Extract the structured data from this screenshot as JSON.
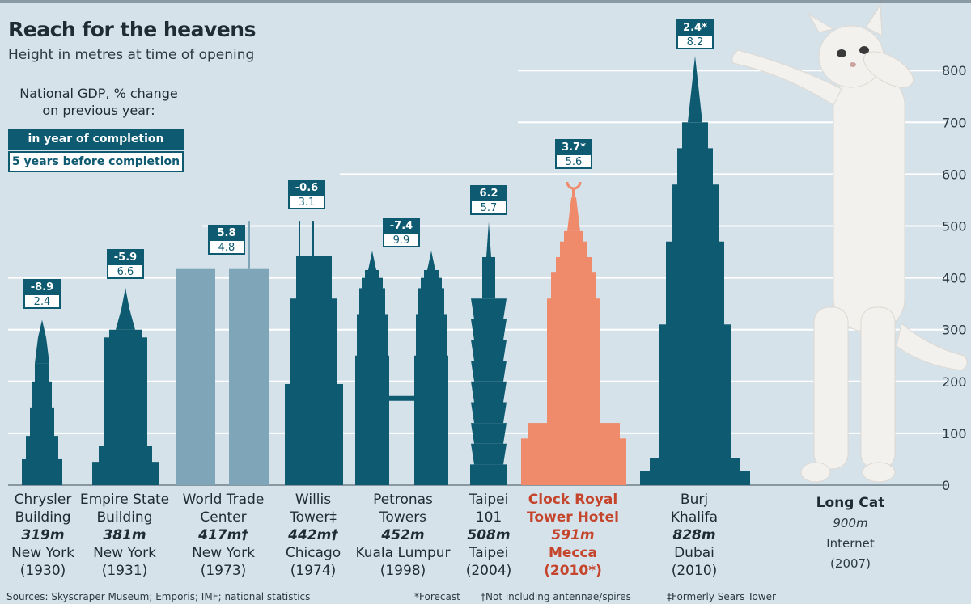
{
  "title": "Reach for the heavens",
  "subtitle": "Height in metres at time of opening",
  "gdp_heading": "National GDP, % change on previous year:",
  "legend": [
    "in year of completion",
    "5 years before completion"
  ],
  "footnotes": {
    "sources": "Sources: Skyscraper Museum; Emporis; IMF; national statistics",
    "forecast": "*Forecast",
    "antennae": "†Not including antennae/spires",
    "sears": "‡Formerly Sears Tower"
  },
  "colors": {
    "teal": "#0e5a71",
    "light_blue": "#7fa6b8",
    "orange": "#ef8a6a",
    "background": "#d6e2ea",
    "gdp_box": "#0e5a71"
  },
  "chart_data": {
    "type": "bar",
    "title": "Reach for the heavens",
    "subtitle": "Height in metres at time of opening",
    "ylim": [
      0,
      800
    ],
    "yticks": [
      0,
      100,
      200,
      300,
      400,
      500,
      600,
      700,
      800
    ],
    "grid": true,
    "axis_side": "right",
    "buildings": [
      {
        "name": "Chrysler Building",
        "name_lines": [
          "Chrysler",
          "Building"
        ],
        "height": 319,
        "height_label": "319m",
        "city": "New York",
        "year_label": "(1930)",
        "gdp_year": "-8.9",
        "gdp_before": "2.4",
        "color": "teal"
      },
      {
        "name": "Empire State Building",
        "name_lines": [
          "Empire State",
          "Building"
        ],
        "height": 381,
        "height_label": "381m",
        "city": "New York",
        "year_label": "(1931)",
        "gdp_year": "-5.9",
        "gdp_before": "6.6",
        "color": "teal"
      },
      {
        "name": "World Trade Center",
        "name_lines": [
          "World Trade",
          "Center"
        ],
        "height": 417,
        "height_label": "417m†",
        "city": "New York",
        "year_label": "(1973)",
        "gdp_year": "5.8",
        "gdp_before": "4.8",
        "color": "light_blue"
      },
      {
        "name": "Willis Tower",
        "name_lines": [
          "Willis",
          "Tower‡"
        ],
        "height": 442,
        "height_label": "442m†",
        "city": "Chicago",
        "year_label": "(1974)",
        "gdp_year": "-0.6",
        "gdp_before": "3.1",
        "color": "teal"
      },
      {
        "name": "Petronas Towers",
        "name_lines": [
          "Petronas",
          "Towers"
        ],
        "height": 452,
        "height_label": "452m",
        "city": "Kuala Lumpur",
        "year_label": "(1998)",
        "gdp_year": "-7.4",
        "gdp_before": "9.9",
        "color": "teal"
      },
      {
        "name": "Taipei 101",
        "name_lines": [
          "Taipei",
          "101"
        ],
        "height": 508,
        "height_label": "508m",
        "city": "Taipei",
        "year_label": "(2004)",
        "gdp_year": "6.2",
        "gdp_before": "5.7",
        "color": "teal"
      },
      {
        "name": "Clock Royal Tower Hotel",
        "name_lines": [
          "Clock Royal",
          "Tower Hotel"
        ],
        "height": 591,
        "height_label": "591m",
        "city": "Mecca",
        "year_label": "(2010*)",
        "gdp_year": "3.7*",
        "gdp_before": "5.6",
        "color": "orange"
      },
      {
        "name": "Burj Khalifa",
        "name_lines": [
          "Burj",
          "Khalifa"
        ],
        "height": 828,
        "height_label": "828m",
        "city": "Dubai",
        "year_label": "(2010)",
        "gdp_year": "2.4*",
        "gdp_before": "8.2",
        "color": "teal"
      },
      {
        "name": "Long Cat",
        "name_lines": [
          "Long Cat"
        ],
        "height": 900,
        "height_label": "900m",
        "city": "Internet",
        "year_label": "(2007)",
        "color": "white"
      }
    ]
  }
}
